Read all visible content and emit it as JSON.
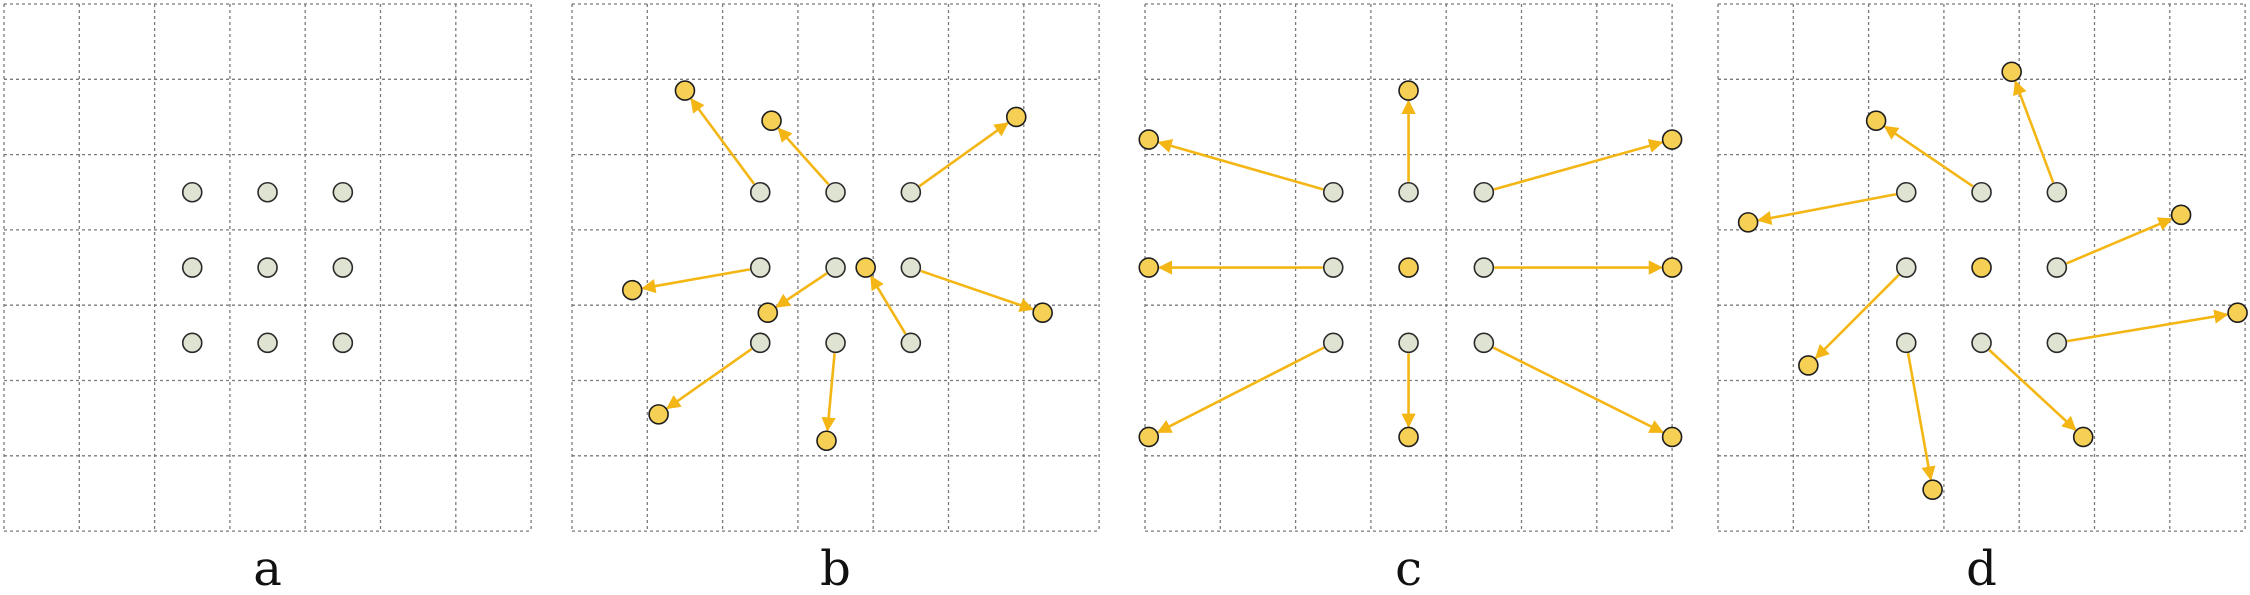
{
  "figure": {
    "grid_cells": 7,
    "colors": {
      "sampling_point_fill": "#dfe3d2",
      "offset_point_fill": "#f6cf55",
      "arrow": "#f3b614",
      "grid": "#7a7a7a"
    },
    "panels": [
      {
        "label": "a",
        "points": [
          {
            "from": [
              -1,
              -1
            ]
          },
          {
            "from": [
              0,
              -1
            ]
          },
          {
            "from": [
              1,
              -1
            ]
          },
          {
            "from": [
              -1,
              0
            ]
          },
          {
            "from": [
              0,
              0
            ]
          },
          {
            "from": [
              1,
              0
            ]
          },
          {
            "from": [
              -1,
              1
            ]
          },
          {
            "from": [
              0,
              1
            ]
          },
          {
            "from": [
              1,
              1
            ]
          }
        ]
      },
      {
        "label": "b",
        "points": [
          {
            "from": [
              -1,
              -1
            ],
            "to": [
              -2.0,
              -2.35
            ]
          },
          {
            "from": [
              0,
              -1
            ],
            "to": [
              -0.85,
              -1.95
            ]
          },
          {
            "from": [
              1,
              -1
            ],
            "to": [
              2.4,
              -2.0
            ]
          },
          {
            "from": [
              -1,
              0
            ],
            "to": [
              -2.7,
              0.3
            ]
          },
          {
            "from": [
              0,
              0
            ],
            "to": [
              -0.9,
              0.6
            ]
          },
          {
            "from": [
              1,
              0
            ],
            "to": [
              2.75,
              0.6
            ]
          },
          {
            "from": [
              -1,
              1
            ],
            "to": [
              -2.35,
              1.95
            ]
          },
          {
            "from": [
              0,
              1
            ],
            "to": [
              -0.12,
              2.3
            ]
          },
          {
            "from": [
              1,
              1
            ],
            "to": [
              0.4,
              0.0
            ]
          }
        ]
      },
      {
        "label": "c",
        "points": [
          {
            "from": [
              -1,
              -1
            ],
            "to": [
              -3.45,
              -1.7
            ]
          },
          {
            "from": [
              0,
              -1
            ],
            "to": [
              0,
              -2.35
            ]
          },
          {
            "from": [
              1,
              -1
            ],
            "to": [
              3.5,
              -1.7
            ]
          },
          {
            "from": [
              -1,
              0
            ],
            "to": [
              -3.45,
              0
            ]
          },
          {
            "from": [
              0,
              0
            ]
          },
          {
            "from": [
              1,
              0
            ],
            "to": [
              3.5,
              0
            ]
          },
          {
            "from": [
              -1,
              1
            ],
            "to": [
              -3.45,
              2.25
            ]
          },
          {
            "from": [
              0,
              1
            ],
            "to": [
              0,
              2.25
            ]
          },
          {
            "from": [
              1,
              1
            ],
            "to": [
              3.5,
              2.25
            ]
          }
        ]
      },
      {
        "label": "d",
        "points": [
          {
            "from": [
              -1,
              -1
            ],
            "to": [
              -3.1,
              -0.6
            ]
          },
          {
            "from": [
              0,
              -1
            ],
            "to": [
              -1.4,
              -1.95
            ]
          },
          {
            "from": [
              1,
              -1
            ],
            "to": [
              0.4,
              -2.6
            ]
          },
          {
            "from": [
              -1,
              0
            ],
            "to": [
              -2.3,
              1.3
            ]
          },
          {
            "from": [
              0,
              0
            ]
          },
          {
            "from": [
              1,
              0
            ],
            "to": [
              2.65,
              -0.7
            ]
          },
          {
            "from": [
              -1,
              1
            ],
            "to": [
              -0.65,
              2.95
            ]
          },
          {
            "from": [
              0,
              1
            ],
            "to": [
              1.35,
              2.25
            ]
          },
          {
            "from": [
              1,
              1
            ],
            "to": [
              3.4,
              0.6
            ]
          }
        ]
      }
    ]
  }
}
